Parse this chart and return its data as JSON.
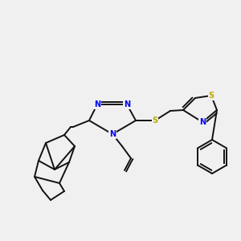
{
  "bg_color": "#f0f0f0",
  "bond_color": "#111111",
  "N_color": "#0000ee",
  "S_color": "#bbaa00",
  "font_size_atom": 7.0,
  "line_width": 1.4,
  "figsize": [
    3.0,
    3.0
  ],
  "dpi": 100,
  "xlim": [
    0,
    300
  ],
  "ylim": [
    0,
    300
  ]
}
